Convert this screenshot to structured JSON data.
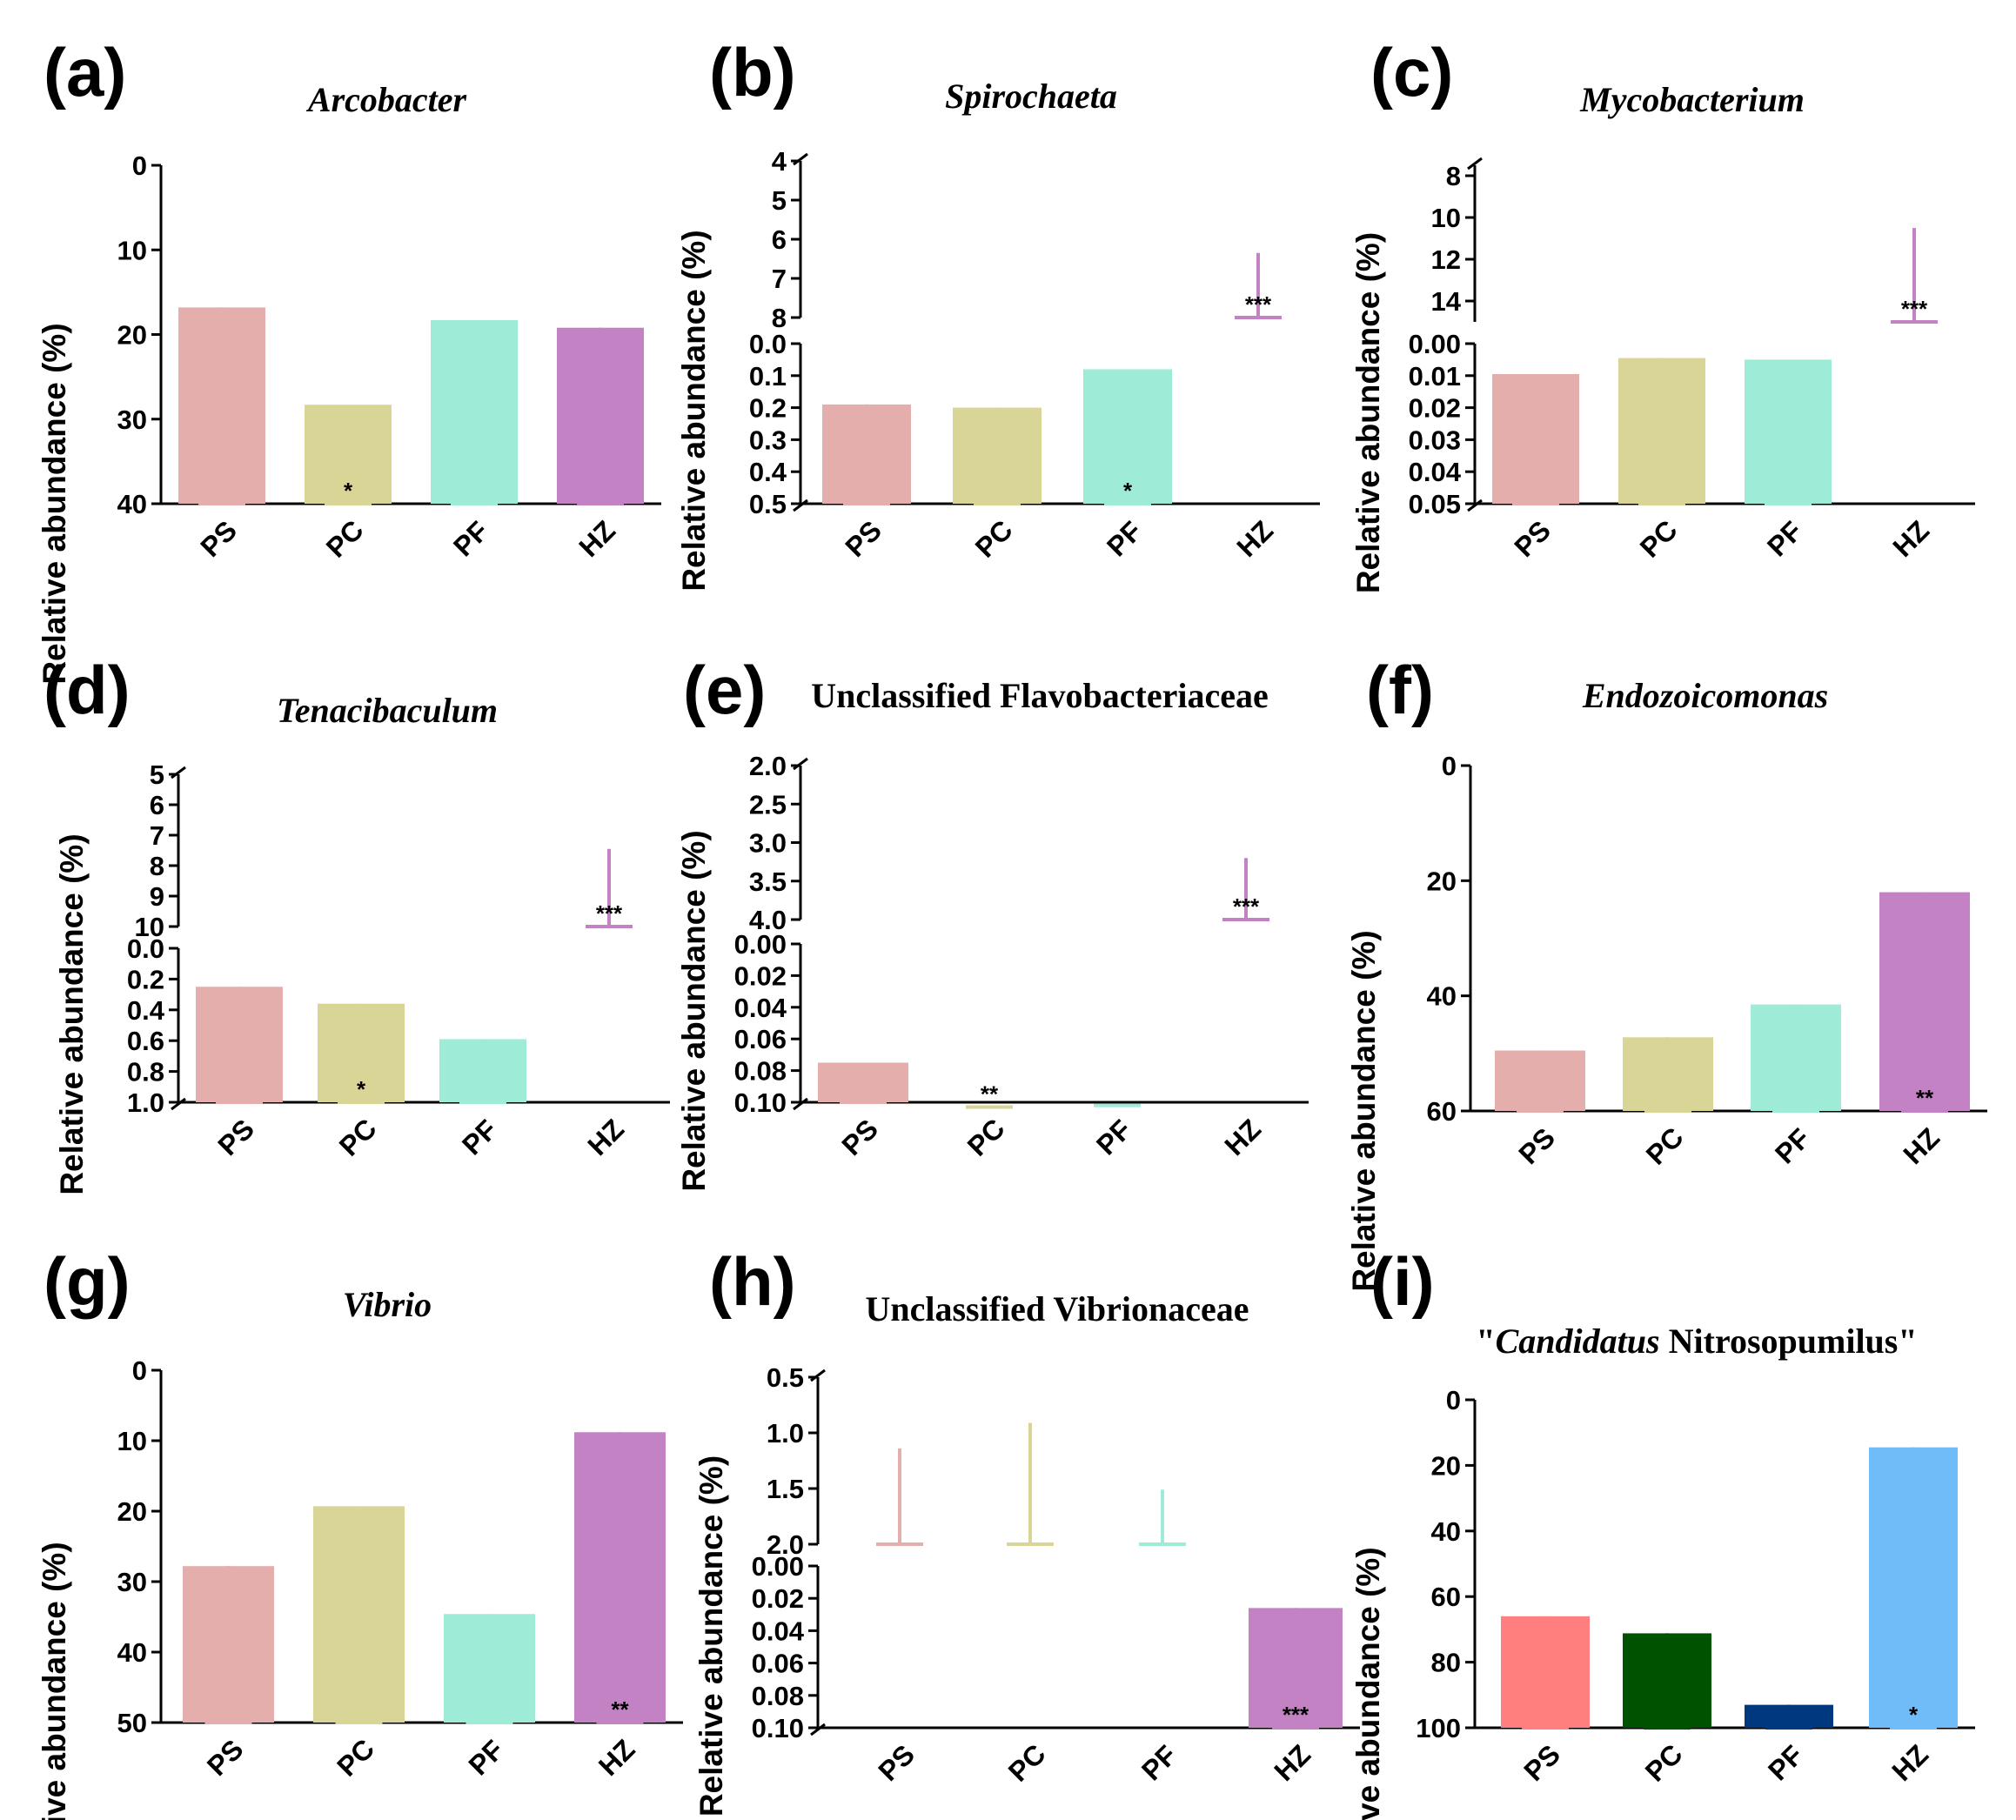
{
  "chart_data": [
    {
      "id": "a",
      "label": "(a)",
      "type": "bar",
      "title": [
        {
          "text": "Arcobacter",
          "italic": true
        }
      ],
      "ylabel": "Relative abundance (%)",
      "categories": [
        "PS",
        "PC",
        "PF",
        "HZ"
      ],
      "values": [
        16.8,
        28.3,
        18.3,
        19.2
      ],
      "errors": [
        1.5,
        2.7,
        1.4,
        0.6
      ],
      "significance": [
        "",
        "*",
        "",
        ""
      ],
      "colors": [
        "#e4aeac",
        "#d8d596",
        "#9eebd8",
        "#c282c4"
      ],
      "segments": [
        {
          "range": [
            0,
            40
          ],
          "ticks": [
            "0",
            "10",
            "20",
            "30",
            "40"
          ]
        }
      ]
    },
    {
      "id": "b",
      "label": "(b)",
      "type": "bar",
      "title": [
        {
          "text": "Spirochaeta",
          "italic": true
        }
      ],
      "ylabel": "Relative abundance (%)",
      "categories": [
        "PS",
        "PC",
        "PF",
        "HZ"
      ],
      "values": [
        0.19,
        0.2,
        0.08,
        6.35
      ],
      "errors": [
        0.03,
        0.02,
        0.005,
        0.12
      ],
      "significance": [
        "",
        "",
        "*",
        "***"
      ],
      "colors": [
        "#e4aeac",
        "#d8d596",
        "#9eebd8",
        "#c282c4"
      ],
      "segments": [
        {
          "range": [
            0,
            0.5
          ],
          "ticks": [
            "0.0",
            "0.1",
            "0.2",
            "0.3",
            "0.4",
            "0.5"
          ]
        },
        {
          "range": [
            4,
            8
          ],
          "ticks": [
            "4",
            "5",
            "6",
            "7",
            "8"
          ]
        }
      ]
    },
    {
      "id": "c",
      "label": "(c)",
      "type": "bar",
      "title": [
        {
          "text": "Mycobacterium",
          "italic": true
        }
      ],
      "ylabel": "Relative abundance (%)",
      "categories": [
        "PS",
        "PC",
        "PF",
        "HZ"
      ],
      "values": [
        0.0095,
        0.0045,
        0.005,
        10.5
      ],
      "errors": [
        0.0012,
        0.0015,
        0.001,
        0.6
      ],
      "significance": [
        "",
        "",
        "",
        "***"
      ],
      "colors": [
        "#e4aeac",
        "#d8d596",
        "#9eebd8",
        "#c282c4"
      ],
      "segments": [
        {
          "range": [
            0,
            0.05
          ],
          "ticks": [
            "0.00",
            "0.01",
            "0.02",
            "0.03",
            "0.04",
            "0.05"
          ]
        },
        {
          "range": [
            7.5,
            15
          ],
          "ticks": [
            "8",
            "10",
            "12",
            "14"
          ],
          "tickValues": [
            8,
            10,
            12,
            14
          ]
        }
      ]
    },
    {
      "id": "d",
      "label": "(d)",
      "type": "bar",
      "title": [
        {
          "text": "Tenacibaculum",
          "italic": true
        }
      ],
      "ylabel": "Relative abundance (%)",
      "categories": [
        "PS",
        "PC",
        "PF",
        "HZ"
      ],
      "values": [
        0.25,
        0.36,
        0.59,
        7.45
      ],
      "errors": [
        0.01,
        0.02,
        0.32,
        0.05
      ],
      "significance": [
        "",
        "*",
        "",
        "***"
      ],
      "colors": [
        "#e4aeac",
        "#d8d596",
        "#9eebd8",
        "#c282c4"
      ],
      "segments": [
        {
          "range": [
            0,
            1.0
          ],
          "ticks": [
            "0.0",
            "0.2",
            "0.4",
            "0.6",
            "0.8",
            "1.0"
          ]
        },
        {
          "range": [
            5,
            10
          ],
          "ticks": [
            "5",
            "6",
            "7",
            "8",
            "9",
            "10"
          ]
        }
      ]
    },
    {
      "id": "e",
      "label": "(e)",
      "type": "bar",
      "title": [
        {
          "text": "Unclassified Flavobacteriaceae",
          "italic": false
        }
      ],
      "ylabel": "Relative abundance (%)",
      "categories": [
        "PS",
        "PC",
        "PF",
        "HZ"
      ],
      "values": [
        0.075,
        0.102,
        0.102,
        3.2
      ],
      "errors": [
        0.001,
        0.001,
        0.0,
        0.04
      ],
      "significance": [
        "",
        "**",
        "",
        "***"
      ],
      "colors": [
        "#e4aeac",
        "#d8d596",
        "#9eebd8",
        "#c282c4"
      ],
      "segments": [
        {
          "range": [
            0,
            0.1
          ],
          "ticks": [
            "0.00",
            "0.02",
            "0.04",
            "0.06",
            "0.08",
            "0.10"
          ]
        },
        {
          "range": [
            2.0,
            4.0
          ],
          "ticks": [
            "2.0",
            "2.5",
            "3.0",
            "3.5",
            "4.0"
          ]
        }
      ]
    },
    {
      "id": "f",
      "label": "(f)",
      "type": "bar",
      "title": [
        {
          "text": "Endozoicomonas",
          "italic": true
        }
      ],
      "ylabel": "Relative abundance (%)",
      "categories": [
        "PS",
        "PC",
        "PF",
        "HZ"
      ],
      "values": [
        49.5,
        47.2,
        41.5,
        22.0
      ],
      "errors": [
        4.0,
        0.8,
        3.8,
        0.3
      ],
      "significance": [
        "",
        "",
        "",
        "**"
      ],
      "colors": [
        "#e4aeac",
        "#d8d596",
        "#9eebd8",
        "#c282c4"
      ],
      "segments": [
        {
          "range": [
            0,
            60
          ],
          "ticks": [
            "0",
            "20",
            "40",
            "60"
          ]
        }
      ]
    },
    {
      "id": "g",
      "label": "(g)",
      "type": "bar",
      "title": [
        {
          "text": "Vibrio",
          "italic": true
        }
      ],
      "ylabel": "Relative abundance (%)",
      "categories": [
        "PS",
        "PC",
        "PF",
        "HZ"
      ],
      "values": [
        27.8,
        19.3,
        34.6,
        8.8
      ],
      "errors": [
        3.2,
        2.4,
        3.6,
        0.3
      ],
      "significance": [
        "",
        "",
        "",
        "**"
      ],
      "colors": [
        "#e4aeac",
        "#d8d596",
        "#9eebd8",
        "#c282c4"
      ],
      "segments": [
        {
          "range": [
            0,
            50
          ],
          "ticks": [
            "0",
            "10",
            "20",
            "30",
            "40",
            "50"
          ]
        }
      ]
    },
    {
      "id": "h",
      "label": "(h)",
      "type": "bar",
      "title": [
        {
          "text": "Unclassified Vibrionaceae",
          "italic": false
        }
      ],
      "ylabel": "Relative abundance (%)",
      "categories": [
        "PS",
        "PC",
        "PF",
        "HZ"
      ],
      "values": [
        1.14,
        0.91,
        1.51,
        0.026
      ],
      "errors": [
        0.06,
        0.05,
        0.19,
        0.01
      ],
      "significance": [
        "",
        "",
        "",
        "***"
      ],
      "colors": [
        "#e4aeac",
        "#d8d596",
        "#9eebd8",
        "#c282c4"
      ],
      "segments": [
        {
          "range": [
            0,
            0.1
          ],
          "ticks": [
            "0.00",
            "0.02",
            "0.04",
            "0.06",
            "0.08",
            "0.10"
          ]
        },
        {
          "range": [
            0.5,
            2.0
          ],
          "ticks": [
            "0.5",
            "1.0",
            "1.5",
            "2.0"
          ]
        }
      ]
    },
    {
      "id": "i",
      "label": "(i)",
      "type": "bar",
      "title": [
        {
          "text": "\"",
          "italic": false
        },
        {
          "text": "Candidatus",
          "italic": true
        },
        {
          "text": " Nitrosopumilus\"",
          "italic": false
        }
      ],
      "ylabel": "Relative abundance (%)",
      "categories": [
        "PS",
        "PC",
        "PF",
        "HZ"
      ],
      "values": [
        66.0,
        71.2,
        93.0,
        14.5
      ],
      "errors": [
        10.5,
        8.5,
        1.2,
        8.2
      ],
      "significance": [
        "",
        "",
        "",
        "*"
      ],
      "colors": [
        "#ff7f7f",
        "#005200",
        "#003880",
        "#6fbcf9"
      ],
      "segments": [
        {
          "range": [
            0,
            100
          ],
          "ticks": [
            "0",
            "20",
            "40",
            "60",
            "80",
            "100"
          ]
        }
      ]
    }
  ]
}
